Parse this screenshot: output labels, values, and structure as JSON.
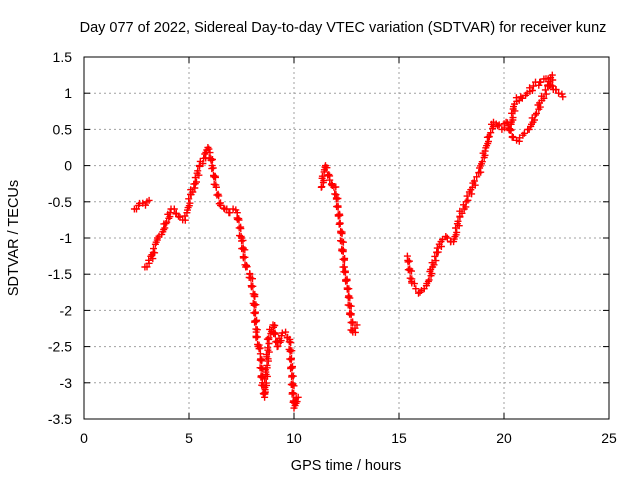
{
  "chart_data": {
    "type": "scatter",
    "title": "Day 077 of 2022, Sidereal Day-to-day VTEC variation (SDTVAR) for receiver kunz",
    "xlabel": "GPS time / hours",
    "ylabel": "SDTVAR / TECUs",
    "xlim": [
      0,
      25
    ],
    "ylim": [
      -3.5,
      1.5
    ],
    "xticks": [
      0,
      5,
      10,
      15,
      20,
      25
    ],
    "xtick_labels": [
      "0",
      "5",
      "10",
      "15",
      "20",
      "25"
    ],
    "yticks": [
      1.5,
      1,
      0.5,
      0,
      -0.5,
      -1,
      -1.5,
      -2,
      -2.5,
      -3,
      -3.5
    ],
    "ytick_labels": [
      "1.5",
      "1",
      "0.5",
      "0",
      "-0.5",
      "-1",
      "-1.5",
      "-2",
      "-2.5",
      "-3",
      "-3.5"
    ],
    "grid": true,
    "marker": "+",
    "color": "#ff0000",
    "series": [
      {
        "name": "segment-1a",
        "x": [
          2.4,
          2.6,
          2.8,
          3.0,
          3.1
        ],
        "y": [
          -0.6,
          -0.55,
          -0.52,
          -0.5,
          -0.48
        ]
      },
      {
        "name": "segment-1b",
        "x": [
          2.9,
          3.1,
          3.3,
          3.5,
          3.7,
          3.9,
          4.1,
          4.3,
          4.5,
          4.7,
          4.9,
          5.1,
          5.3,
          5.5,
          5.7,
          5.9,
          6.0,
          6.1,
          6.3,
          6.5,
          6.7,
          6.9,
          7.1,
          7.3,
          7.5,
          7.7,
          7.9,
          8.1,
          8.2,
          8.3,
          8.4,
          8.5,
          8.6,
          8.8,
          9.0,
          9.2,
          9.4,
          9.6,
          9.8,
          10.0,
          10.2
        ],
        "y": [
          -1.4,
          -1.35,
          -1.2,
          -1.0,
          -0.95,
          -0.8,
          -0.65,
          -0.6,
          -0.7,
          -0.75,
          -0.65,
          -0.4,
          -0.25,
          0.0,
          0.1,
          0.25,
          0.18,
          0.0,
          -0.3,
          -0.55,
          -0.6,
          -0.65,
          -0.6,
          -0.65,
          -1.0,
          -1.4,
          -1.5,
          -1.8,
          -2.3,
          -2.5,
          -2.6,
          -3.0,
          -3.2,
          -2.4,
          -2.2,
          -2.5,
          -2.35,
          -2.3,
          -2.4,
          -3.35,
          -3.2
        ]
      },
      {
        "name": "segment-2",
        "x": [
          11.3,
          11.5,
          11.7,
          11.8,
          11.9,
          12.0,
          12.2,
          12.4,
          12.6,
          12.8,
          13.0
        ],
        "y": [
          -0.3,
          0.0,
          -0.2,
          -0.25,
          -0.3,
          -0.4,
          -0.8,
          -1.4,
          -1.8,
          -2.3,
          -2.2
        ]
      },
      {
        "name": "segment-3",
        "x": [
          15.4,
          15.6,
          15.8,
          16.0,
          16.2,
          16.4,
          16.6,
          16.8,
          17.0,
          17.3,
          17.6,
          17.9,
          18.2,
          18.5,
          18.8,
          19.1,
          19.3,
          19.5,
          19.7,
          19.9,
          20.1,
          20.3,
          20.5,
          20.8,
          21.1,
          21.4,
          21.7,
          22.0,
          22.3,
          22.6,
          22.8
        ],
        "y": [
          -1.25,
          -1.6,
          -1.7,
          -1.75,
          -1.7,
          -1.6,
          -1.4,
          -1.2,
          -1.05,
          -1.0,
          -1.05,
          -0.7,
          -0.5,
          -0.3,
          -0.1,
          0.2,
          0.4,
          0.6,
          0.55,
          0.5,
          0.6,
          0.5,
          0.85,
          0.95,
          1.0,
          1.1,
          1.15,
          1.2,
          1.1,
          1.0,
          0.95
        ]
      },
      {
        "name": "segment-3b",
        "x": [
          20.2,
          20.4,
          20.6,
          20.9,
          21.2,
          21.5,
          21.8,
          22.1,
          22.3
        ],
        "y": [
          0.55,
          0.4,
          0.35,
          0.42,
          0.5,
          0.7,
          0.9,
          1.1,
          1.25
        ]
      }
    ]
  }
}
